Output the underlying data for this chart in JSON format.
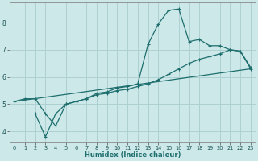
{
  "xlabel": "Humidex (Indice chaleur)",
  "bg_color": "#cce8e8",
  "grid_color": "#afd0d0",
  "line_color": "#1e6e6e",
  "xlim": [
    -0.5,
    23.5
  ],
  "ylim": [
    3.6,
    8.75
  ],
  "xticks": [
    0,
    1,
    2,
    3,
    4,
    5,
    6,
    7,
    8,
    9,
    10,
    11,
    12,
    13,
    14,
    15,
    16,
    17,
    18,
    19,
    20,
    21,
    22,
    23
  ],
  "yticks": [
    4,
    5,
    6,
    7,
    8
  ],
  "curve1_x": [
    0,
    1,
    2,
    3,
    4,
    5,
    6,
    7,
    8,
    9,
    10,
    11,
    12,
    13,
    14,
    15,
    16,
    17,
    18,
    19,
    20,
    21,
    22,
    23
  ],
  "curve1_y": [
    5.1,
    5.2,
    5.2,
    4.65,
    4.2,
    5.0,
    5.1,
    5.2,
    5.4,
    5.45,
    5.6,
    5.65,
    5.75,
    7.2,
    7.95,
    8.45,
    8.5,
    7.3,
    7.38,
    7.15,
    7.15,
    7.0,
    6.95,
    6.35
  ],
  "curve2_x": [
    2,
    3,
    4,
    5,
    6,
    7,
    8,
    9,
    10,
    11,
    12,
    13,
    14,
    15,
    16,
    17,
    18,
    19,
    20,
    21,
    22,
    23
  ],
  "curve2_y": [
    4.65,
    3.8,
    4.65,
    5.0,
    5.1,
    5.2,
    5.35,
    5.4,
    5.5,
    5.55,
    5.65,
    5.75,
    5.9,
    6.1,
    6.3,
    6.5,
    6.65,
    6.75,
    6.85,
    7.0,
    6.95,
    6.3
  ],
  "curve3_x": [
    0,
    23
  ],
  "curve3_y": [
    5.1,
    6.3
  ]
}
